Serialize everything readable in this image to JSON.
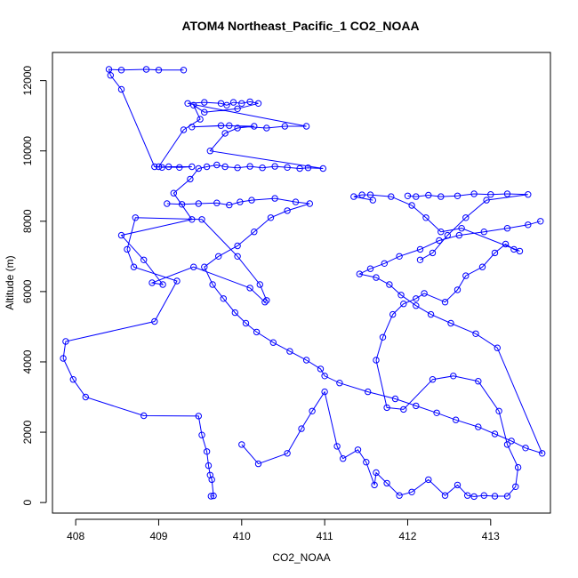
{
  "chart_data": {
    "type": "line",
    "title": "ATOM4 Northeast_Pacific_1 CO2_NOAA",
    "xlabel": "CO2_NOAA",
    "ylabel": "Altitude (m)",
    "xlim": [
      407.72,
      413.72
    ],
    "ylim": [
      -300,
      12800
    ],
    "x_ticks": [
      408,
      409,
      410,
      411,
      412,
      413
    ],
    "y_ticks": [
      0,
      2000,
      4000,
      6000,
      8000,
      10000,
      12000
    ],
    "grid": false,
    "markers": "open-circle",
    "color": "#0000ff",
    "series": [
      {
        "x": [
          409.63,
          409.66,
          409.64,
          409.62,
          409.6,
          409.58,
          409.52,
          409.48,
          408.82,
          408.12,
          407.97,
          407.85,
          407.88,
          408.95,
          409.22,
          408.7,
          408.62,
          408.72,
          409.52,
          409.95,
          410.22,
          410.3,
          410.28,
          410.1,
          409.42,
          408.92,
          409.05,
          408.82,
          408.55,
          409.4,
          409.18,
          409.38,
          409.48,
          409.58,
          409.7,
          409.8,
          409.95,
          410.1,
          410.25,
          410.4,
          410.55,
          410.7,
          410.8,
          410.98,
          409.62,
          409.8,
          409.95,
          410.15,
          409.75,
          409.4,
          409.85,
          410.3,
          410.52,
          410.78,
          409.35,
          409.55,
          409.75,
          409.82,
          409.9,
          410.0,
          410.1,
          410.2,
          409.95,
          409.55,
          409.42,
          409.5,
          409.3,
          409.0,
          409.04,
          409.12,
          409.4,
          409.25,
          408.95,
          408.55,
          408.42,
          408.4,
          408.55,
          408.85,
          409.0,
          409.3
        ],
        "y": [
          180,
          190,
          650,
          780,
          1050,
          1450,
          1920,
          2460,
          2470,
          3000,
          3500,
          4100,
          4580,
          5150,
          6300,
          6700,
          7200,
          8100,
          8050,
          7000,
          6200,
          5750,
          5700,
          6100,
          6700,
          6250,
          6200,
          6900,
          7600,
          8050,
          8800,
          9200,
          9500,
          9550,
          9600,
          9550,
          9520,
          9560,
          9520,
          9560,
          9530,
          9500,
          9520,
          9500,
          10000,
          10500,
          10650,
          10700,
          10720,
          10680,
          10720,
          10650,
          10700,
          10700,
          11350,
          11380,
          11350,
          11300,
          11380,
          11350,
          11400,
          11350,
          11200,
          11100,
          11300,
          10900,
          10600,
          9550,
          9530,
          9550,
          9550,
          9530,
          9550,
          11750,
          12150,
          12320,
          12300,
          12320,
          12300,
          12300
        ]
      },
      {
        "x": [
          410.0,
          410.2,
          410.55,
          410.72,
          410.85,
          411.0,
          411.15,
          411.22,
          411.4,
          411.5,
          411.6,
          411.62,
          411.75,
          411.9,
          412.05,
          412.25,
          412.45,
          412.6,
          412.72,
          412.8,
          412.92,
          413.05,
          413.2,
          413.3,
          413.33,
          413.2,
          413.1,
          412.85,
          412.55,
          412.3,
          411.95,
          411.75,
          411.62,
          411.7,
          411.82,
          411.95,
          412.1,
          412.2,
          412.45,
          412.6,
          412.7,
          412.9,
          413.05,
          413.18,
          413.28,
          413.35,
          412.65,
          412.4,
          412.22,
          412.05,
          411.8,
          411.55,
          411.45,
          411.35,
          411.58
        ],
        "y": [
          1650,
          1100,
          1400,
          2100,
          2600,
          3150,
          1600,
          1250,
          1500,
          1150,
          500,
          850,
          550,
          200,
          300,
          650,
          200,
          500,
          200,
          170,
          200,
          180,
          180,
          450,
          1000,
          1650,
          2600,
          3450,
          3600,
          3500,
          2650,
          2700,
          4050,
          4700,
          5350,
          5650,
          5800,
          5950,
          5700,
          6050,
          6450,
          6700,
          7100,
          7350,
          7200,
          7150,
          7800,
          7700,
          8100,
          8450,
          8700,
          8750,
          8750,
          8700,
          8600
        ]
      },
      {
        "x": [
          409.1,
          409.28,
          409.48,
          409.7,
          409.85,
          409.98,
          410.12,
          410.4,
          410.65,
          410.82,
          410.55,
          410.35,
          410.15,
          409.95,
          409.72,
          409.55,
          409.65,
          409.78,
          409.92,
          410.05,
          410.18,
          410.38,
          410.58,
          410.78,
          410.95,
          411.0,
          411.18,
          411.52,
          411.85,
          412.1,
          412.35,
          412.58,
          412.85,
          413.05,
          413.25,
          413.42,
          413.62,
          413.08,
          412.82,
          412.52,
          412.28,
          412.1,
          411.92,
          411.78,
          411.62,
          411.42,
          411.55,
          411.72,
          411.9,
          412.15,
          412.38,
          412.62,
          412.92,
          413.2,
          413.45,
          413.6
        ],
        "y": [
          8500,
          8480,
          8500,
          8520,
          8460,
          8550,
          8600,
          8650,
          8550,
          8500,
          8300,
          8100,
          7700,
          7300,
          7000,
          6700,
          6200,
          5800,
          5400,
          5100,
          4850,
          4550,
          4300,
          4050,
          3800,
          3600,
          3400,
          3150,
          2950,
          2750,
          2550,
          2350,
          2150,
          1950,
          1750,
          1550,
          1400,
          4400,
          4800,
          5100,
          5350,
          5600,
          5900,
          6200,
          6400,
          6500,
          6650,
          6800,
          7000,
          7200,
          7450,
          7600,
          7700,
          7800,
          7900,
          8000
        ]
      },
      {
        "x": [
          412.0,
          412.1,
          412.25,
          412.4,
          412.6,
          412.8,
          413.0,
          413.2,
          413.45,
          412.95,
          412.7,
          412.48,
          412.3,
          412.15
        ],
        "y": [
          8720,
          8700,
          8740,
          8700,
          8720,
          8780,
          8760,
          8780,
          8760,
          8600,
          8100,
          7600,
          7100,
          6900
        ]
      }
    ]
  }
}
